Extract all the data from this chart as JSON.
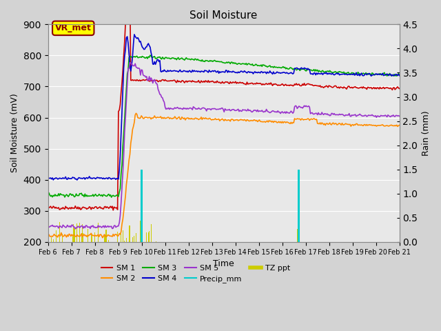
{
  "title": "Soil Moisture",
  "ylabel_left": "Soil Moisture (mV)",
  "ylabel_right": "Rain (mm)",
  "xlabel": "Time",
  "ylim_left": [
    200,
    900
  ],
  "ylim_right": [
    0.0,
    4.5
  ],
  "background_color": "#d3d3d3",
  "plot_bg_color": "#e8e8e8",
  "annotation_text": "VR_met",
  "annotation_box_color": "#ffff00",
  "annotation_border_color": "#8b0000",
  "legend_items": [
    {
      "label": "SM 1",
      "color": "#cc0000",
      "lw": 1.5
    },
    {
      "label": "SM 2",
      "color": "#ff8c00",
      "lw": 1.5
    },
    {
      "label": "SM 3",
      "color": "#00aa00",
      "lw": 1.5
    },
    {
      "label": "SM 4",
      "color": "#0000cc",
      "lw": 1.5
    },
    {
      "label": "SM 5",
      "color": "#9933cc",
      "lw": 1.5
    },
    {
      "label": "Precip_mm",
      "color": "#00cccc",
      "lw": 1.5
    },
    {
      "label": "TZ ppt",
      "color": "#cccc00",
      "lw": 4
    }
  ],
  "x_ticks": [
    "Feb 6",
    "Feb 7",
    "Feb 8",
    "Feb 9",
    "Feb 10",
    "Feb 11",
    "Feb 12",
    "Feb 13",
    "Feb 14",
    "Feb 15",
    "Feb 16",
    "Feb 17",
    "Feb 18",
    "Feb 19",
    "Feb 20",
    "Feb 21"
  ],
  "n_points": 400
}
